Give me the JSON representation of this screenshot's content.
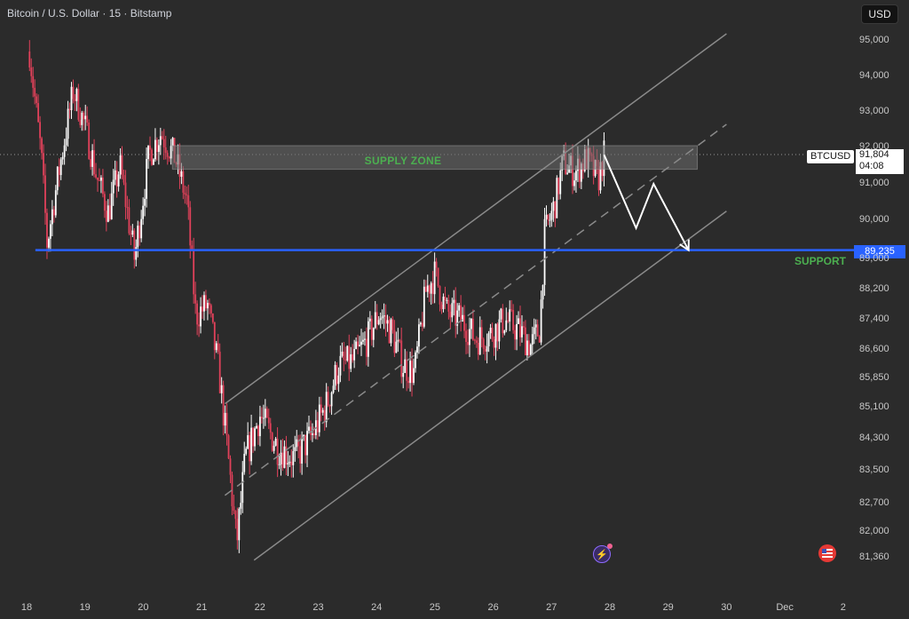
{
  "header": {
    "title": "Bitcoin / U.S. Dollar · 15 · Bitstamp",
    "currency_button": "USD"
  },
  "annotations": {
    "supply_zone_label": "SUPPLY ZONE",
    "support_label": "SUPPORT",
    "support_price_tag": "89,235",
    "symbol_tag": "BTCUSD",
    "current_price": "91,804",
    "countdown": "04:08"
  },
  "colors": {
    "background": "#2b2b2b",
    "candle_up": "#ffffff",
    "candle_down": "#e0415a",
    "support_line": "#2962ff",
    "zone_text": "#4caf50",
    "channel": "#8a8a8a"
  },
  "icons": {
    "event": "event-lightning-icon",
    "flag": "us-flag-icon"
  },
  "chart_data": {
    "type": "candlestick",
    "title": "Bitcoin / U.S. Dollar · 15 · Bitstamp",
    "y_ticks": [
      "95,000",
      "94,000",
      "93,000",
      "92,000",
      "91,000",
      "90,000",
      "89,000",
      "88,200",
      "87,400",
      "86,600",
      "85,850",
      "85,100",
      "84,300",
      "83,500",
      "82,700",
      "82,000",
      "81,360"
    ],
    "y_tick_values": [
      95000,
      94000,
      93000,
      92000,
      91000,
      90000,
      89000,
      88200,
      87400,
      86600,
      85850,
      85100,
      84300,
      83500,
      82700,
      82000,
      81360
    ],
    "x_ticks": [
      "18",
      "19",
      "20",
      "21",
      "22",
      "23",
      "24",
      "25",
      "26",
      "27",
      "28",
      "29",
      "30",
      "Dec",
      "2"
    ],
    "support_level": 89235,
    "current_price": 91804,
    "supply_zone": [
      91400,
      92050
    ],
    "price_path": [
      {
        "x": 18.05,
        "y": 94700
      },
      {
        "x": 18.25,
        "y": 91800
      },
      {
        "x": 18.35,
        "y": 89400
      },
      {
        "x": 18.55,
        "y": 91300
      },
      {
        "x": 18.8,
        "y": 93600
      },
      {
        "x": 19.0,
        "y": 92600
      },
      {
        "x": 19.2,
        "y": 91200
      },
      {
        "x": 19.4,
        "y": 90200
      },
      {
        "x": 19.6,
        "y": 91500
      },
      {
        "x": 19.85,
        "y": 89000
      },
      {
        "x": 20.1,
        "y": 91800
      },
      {
        "x": 20.3,
        "y": 92400
      },
      {
        "x": 20.55,
        "y": 91700
      },
      {
        "x": 20.75,
        "y": 90500
      },
      {
        "x": 20.9,
        "y": 87500
      },
      {
        "x": 21.1,
        "y": 87800
      },
      {
        "x": 21.3,
        "y": 86000
      },
      {
        "x": 21.5,
        "y": 83200
      },
      {
        "x": 21.6,
        "y": 81700
      },
      {
        "x": 21.75,
        "y": 83800
      },
      {
        "x": 22.0,
        "y": 84900
      },
      {
        "x": 22.3,
        "y": 84100
      },
      {
        "x": 22.6,
        "y": 83800
      },
      {
        "x": 22.9,
        "y": 84400
      },
      {
        "x": 23.15,
        "y": 85200
      },
      {
        "x": 23.35,
        "y": 86200
      },
      {
        "x": 23.6,
        "y": 86300
      },
      {
        "x": 23.85,
        "y": 86900
      },
      {
        "x": 24.05,
        "y": 87600
      },
      {
        "x": 24.25,
        "y": 87100
      },
      {
        "x": 24.45,
        "y": 86200
      },
      {
        "x": 24.65,
        "y": 86000
      },
      {
        "x": 24.85,
        "y": 88200
      },
      {
        "x": 25.0,
        "y": 88600
      },
      {
        "x": 25.2,
        "y": 87600
      },
      {
        "x": 25.45,
        "y": 87400
      },
      {
        "x": 25.7,
        "y": 86900
      },
      {
        "x": 25.95,
        "y": 87000
      },
      {
        "x": 26.2,
        "y": 87400
      },
      {
        "x": 26.45,
        "y": 87100
      },
      {
        "x": 26.65,
        "y": 86700
      },
      {
        "x": 26.8,
        "y": 87200
      },
      {
        "x": 26.88,
        "y": 89600
      },
      {
        "x": 27.05,
        "y": 90400
      },
      {
        "x": 27.2,
        "y": 91600
      },
      {
        "x": 27.4,
        "y": 91300
      },
      {
        "x": 27.6,
        "y": 91700
      },
      {
        "x": 27.8,
        "y": 91100
      },
      {
        "x": 27.9,
        "y": 91800
      }
    ],
    "projection": [
      {
        "x": 27.9,
        "y": 91800
      },
      {
        "x": 28.45,
        "y": 89800
      },
      {
        "x": 28.75,
        "y": 91000
      },
      {
        "x": 29.35,
        "y": 89235
      }
    ],
    "channel": {
      "upper": [
        {
          "x": 21.4,
          "y": 85200
        },
        {
          "x": 30.0,
          "y": 95200
        }
      ],
      "lower": [
        {
          "x": 21.9,
          "y": 81300
        },
        {
          "x": 30.0,
          "y": 90250
        }
      ],
      "middle": [
        {
          "x": 21.4,
          "y": 82900
        },
        {
          "x": 30.0,
          "y": 92650
        }
      ]
    },
    "grid": false
  }
}
